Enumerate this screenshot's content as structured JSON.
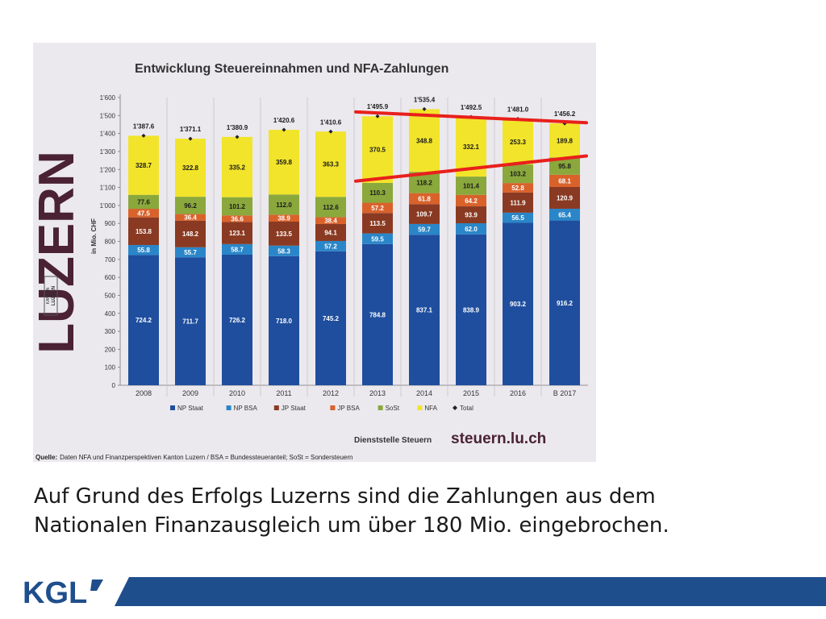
{
  "brand": {
    "luzern_logo": "LUZERN",
    "kanton_badge_line1": "KANTON",
    "kanton_badge_line2": "LUZERN",
    "footer_logo": "KGL"
  },
  "chart_data": {
    "type": "bar",
    "stacked": true,
    "title": "Entwicklung Steuereinnahmen und NFA-Zahlungen",
    "ylabel": "in Mio. CHF",
    "ylim": [
      0,
      1600
    ],
    "yticks": [
      "0",
      "100",
      "200",
      "300",
      "400",
      "500",
      "600",
      "700",
      "800",
      "900",
      "1'000",
      "1'100",
      "1'200",
      "1'300",
      "1'400",
      "1'500",
      "1'600"
    ],
    "categories": [
      "2008",
      "2009",
      "2010",
      "2011",
      "2012",
      "2013",
      "2014",
      "2015",
      "2016",
      "B 2017"
    ],
    "series": [
      {
        "name": "NP Staat",
        "color": "#1f4e9e",
        "values": [
          724.2,
          711.7,
          726.2,
          718.0,
          745.2,
          784.8,
          837.1,
          838.9,
          903.2,
          916.2
        ]
      },
      {
        "name": "NP BSA",
        "color": "#2a86c8",
        "values": [
          55.8,
          55.7,
          58.7,
          58.3,
          57.2,
          59.5,
          59.7,
          62.0,
          56.5,
          65.4
        ]
      },
      {
        "name": "JP Staat",
        "color": "#8a3a22",
        "values": [
          153.8,
          148.2,
          123.1,
          133.5,
          94.1,
          113.5,
          109.7,
          93.9,
          111.9,
          120.9
        ]
      },
      {
        "name": "JP BSA",
        "color": "#d9622b",
        "values": [
          47.5,
          36.4,
          36.6,
          38.9,
          38.4,
          57.2,
          61.8,
          64.2,
          52.8,
          68.1
        ]
      },
      {
        "name": "SoSt",
        "color": "#8aa83c",
        "values": [
          77.6,
          96.2,
          101.2,
          112.0,
          112.6,
          110.3,
          118.2,
          101.4,
          103.2,
          95.8
        ]
      },
      {
        "name": "NFA",
        "color": "#f2e42a",
        "values": [
          328.7,
          322.8,
          335.2,
          359.8,
          363.3,
          370.5,
          348.8,
          332.1,
          253.3,
          189.8
        ]
      }
    ],
    "display_labels": [
      [
        "724.2",
        "711.7",
        "726.2",
        "718.0",
        "745.2",
        "784.8",
        "837.1",
        "838.9",
        "903.2",
        "916.2"
      ],
      [
        "55.8",
        "55.7",
        "58.7",
        "58.3",
        "57.2",
        "59.5",
        "59.7",
        "62.0",
        "56.5",
        "65.4"
      ],
      [
        "153.8",
        "148.2",
        "123.1",
        "133.5",
        "94.1",
        "113.5",
        "109.7",
        "93.9",
        "111.9",
        "120.9"
      ],
      [
        "47.5",
        "36.4",
        "36.6",
        "38.9",
        "38.4",
        "57.2",
        "61.8",
        "64.2",
        "52.8",
        "68.1"
      ],
      [
        "77.6",
        "96.2",
        "101.2",
        "112.0",
        "112.6",
        "110.3",
        "118.2",
        "101.4",
        "103.2",
        "95.8"
      ],
      [
        "328.7",
        "322.8",
        "335.2",
        "359.8",
        "363.3",
        "370.5",
        "348.8",
        "332.1",
        "253.3",
        "189.8"
      ]
    ],
    "total": {
      "name": "Total",
      "values": [
        1387.6,
        1371.1,
        1380.9,
        1420.6,
        1410.6,
        1495.9,
        1535.4,
        1492.5,
        1481.0,
        1456.2
      ],
      "labels": [
        "1'387.6",
        "1'371.1",
        "1'380.9",
        "1'420.6",
        "1'410.6",
        "1'495.9",
        "1'535.4",
        "1'492.5",
        "1'481.0",
        "1'456.2"
      ]
    },
    "legend_position": "bottom",
    "grid": false,
    "annotations": {
      "trend_line_color": "#e8201c",
      "upper_line": {
        "from": {
          "category": "2013",
          "y": 1520
        },
        "to": {
          "category": "B 2017",
          "y": 1460
        }
      },
      "lower_line": {
        "from": {
          "category": "2013",
          "y": 1135
        },
        "to": {
          "category": "B 2017",
          "y": 1275
        }
      }
    },
    "department": "Dienststelle Steuern",
    "website": "steuern.lu.ch",
    "source_label": "Quelle:",
    "source_text": "Daten NFA und Finanzperspektiven Kanton Luzern / BSA = Bundessteueranteil; SoSt = Sondersteuern"
  },
  "caption": {
    "line1": "Auf Grund des Erfolgs Luzerns sind die Zahlungen aus dem",
    "line2": "Nationalen Finanzausgleich um über 180 Mio. eingebrochen."
  },
  "colors": {
    "footer_blue": "#1f4e8c",
    "luzern_plum": "#4a2233"
  }
}
